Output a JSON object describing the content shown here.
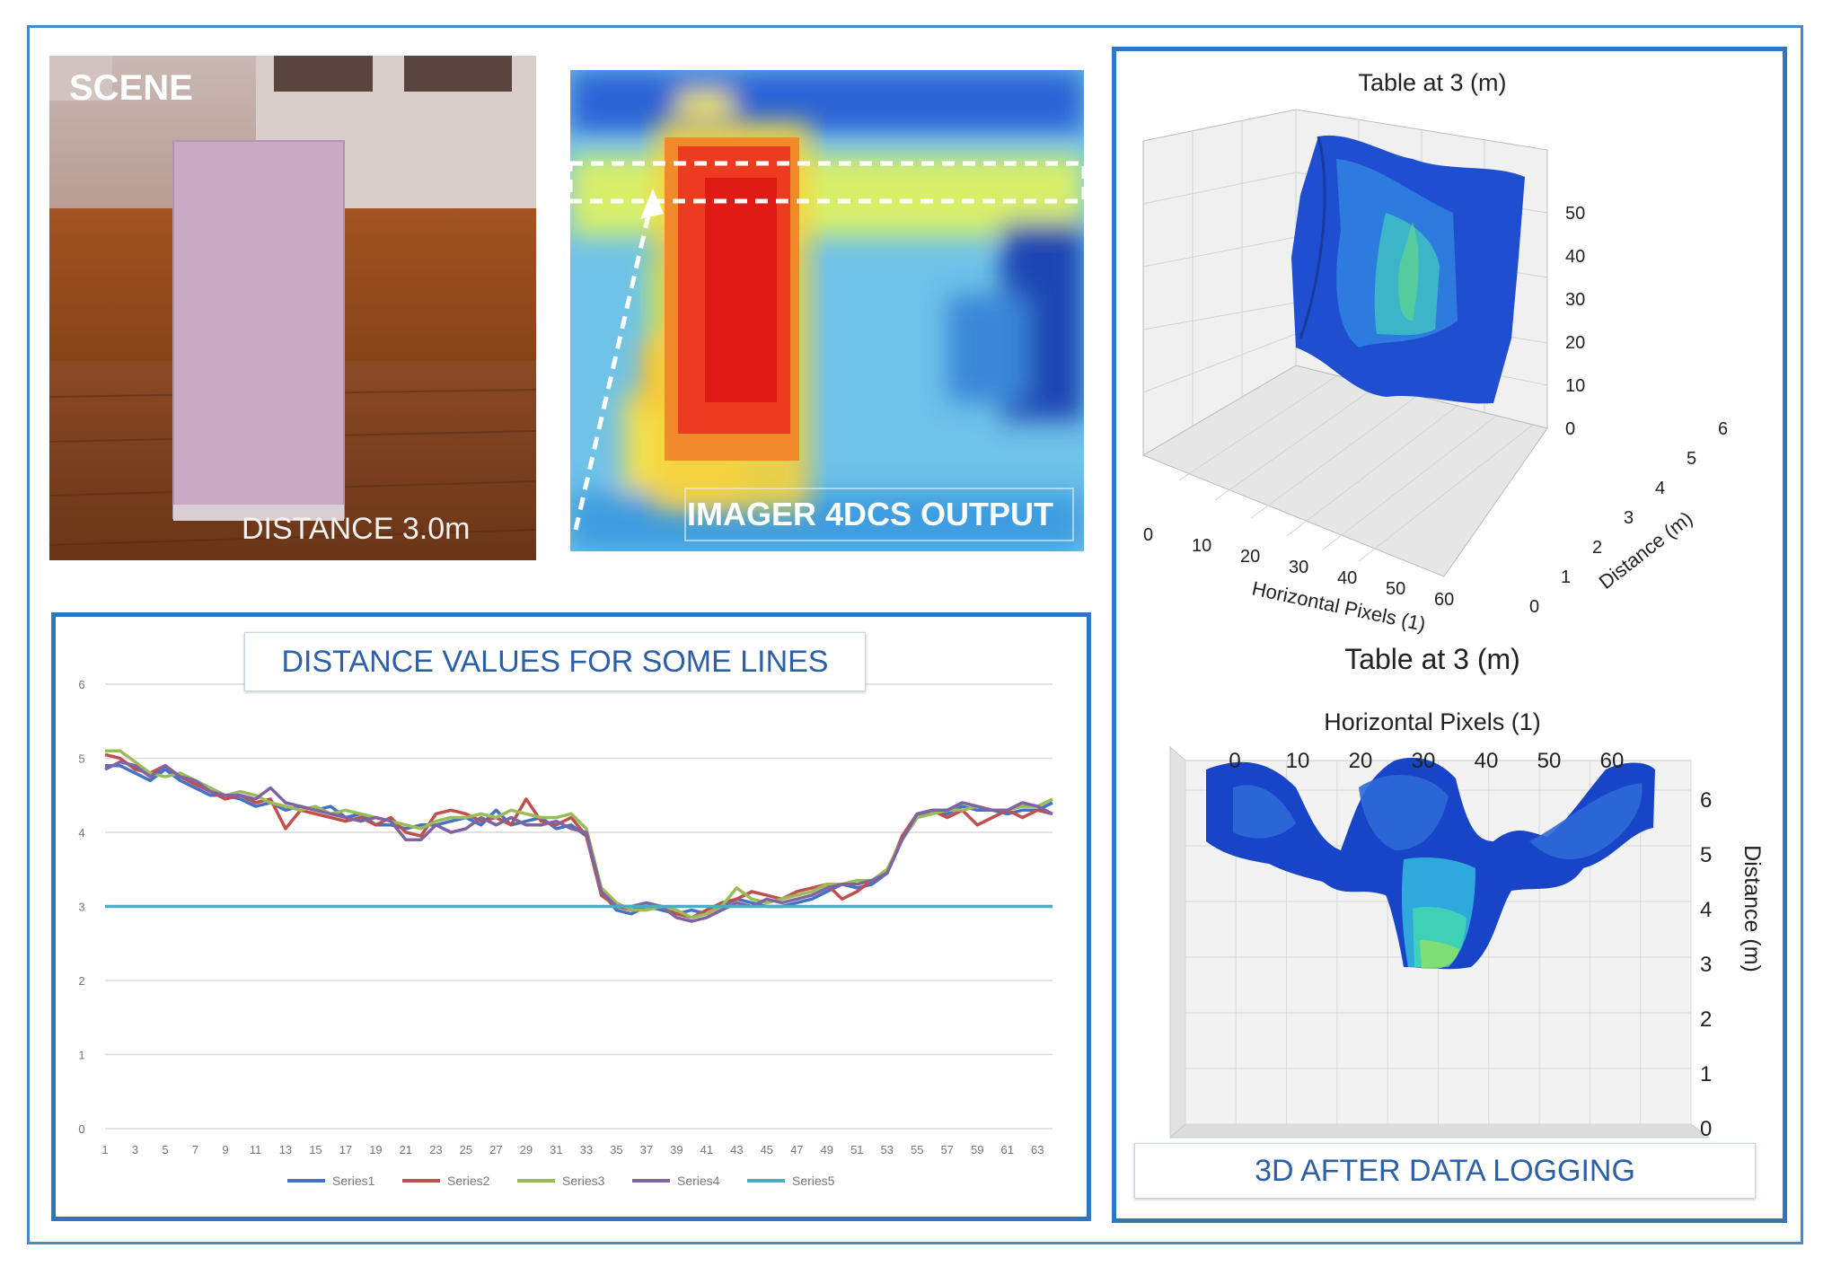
{
  "scene": {
    "label": "SCENE",
    "distance_label": "DISTANCE 3.0m"
  },
  "imager": {
    "label": "IMAGER 4DCS OUTPUT"
  },
  "plot3d_top": {
    "title": "Table at 3 (m)",
    "xlabel": "Horizontal Pixels (1)",
    "ylabel": "Distance (m)",
    "x_ticks": [
      "0",
      "10",
      "20",
      "30",
      "40",
      "50",
      "60"
    ],
    "y_ticks": [
      "0",
      "1",
      "2",
      "3",
      "4",
      "5",
      "6"
    ],
    "z_ticks": [
      "0",
      "10",
      "20",
      "30",
      "40",
      "50"
    ]
  },
  "plot3d_bottom": {
    "title": "Table at 3 (m)",
    "xlabel": "Horizontal Pixels (1)",
    "zlabel": "Distance (m)",
    "x_ticks": [
      "0",
      "10",
      "20",
      "30",
      "40",
      "50",
      "60"
    ],
    "z_ticks": [
      "0",
      "1",
      "2",
      "3",
      "4",
      "5",
      "6"
    ],
    "caption": "3D AFTER DATA LOGGING"
  },
  "chart_data": {
    "type": "line",
    "title": "DISTANCE VALUES FOR SOME LINES",
    "ylim": [
      0,
      6
    ],
    "y_ticks": [
      0,
      1,
      2,
      3,
      4,
      5,
      6
    ],
    "x_tick_labels": [
      "1",
      "3",
      "5",
      "7",
      "9",
      "11",
      "13",
      "15",
      "17",
      "19",
      "21",
      "23",
      "25",
      "27",
      "29",
      "31",
      "33",
      "35",
      "37",
      "39",
      "41",
      "43",
      "45",
      "47",
      "49",
      "51",
      "53",
      "55",
      "57",
      "59",
      "61",
      "63"
    ],
    "x": [
      1,
      2,
      3,
      4,
      5,
      6,
      7,
      8,
      9,
      10,
      11,
      12,
      13,
      14,
      15,
      16,
      17,
      18,
      19,
      20,
      21,
      22,
      23,
      24,
      25,
      26,
      27,
      28,
      29,
      30,
      31,
      32,
      33,
      34,
      35,
      36,
      37,
      38,
      39,
      40,
      41,
      42,
      43,
      44,
      45,
      46,
      47,
      48,
      49,
      50,
      51,
      52,
      53,
      54,
      55,
      56,
      57,
      58,
      59,
      60,
      61,
      62,
      63,
      64
    ],
    "grid": true,
    "legend_position": "bottom",
    "series": [
      {
        "name": "Series1",
        "color": "#4472c4",
        "values": [
          4.9,
          4.9,
          4.8,
          4.7,
          4.85,
          4.7,
          4.6,
          4.5,
          4.5,
          4.45,
          4.35,
          4.4,
          4.3,
          4.35,
          4.3,
          4.35,
          4.2,
          4.25,
          4.1,
          4.1,
          4.05,
          4.1,
          4.1,
          4.15,
          4.2,
          4.1,
          4.3,
          4.1,
          4.15,
          4.2,
          4.05,
          4.1,
          3.95,
          3.2,
          2.95,
          2.9,
          3.0,
          2.95,
          2.9,
          2.95,
          2.9,
          3.0,
          3.1,
          3.05,
          3.0,
          3.0,
          3.05,
          3.1,
          3.2,
          3.3,
          3.25,
          3.3,
          3.45,
          3.9,
          4.2,
          4.3,
          4.25,
          4.35,
          4.3,
          4.3,
          4.25,
          4.3,
          4.3,
          4.4
        ]
      },
      {
        "name": "Series2",
        "color": "#c0504d",
        "values": [
          5.05,
          5.0,
          4.85,
          4.8,
          4.9,
          4.75,
          4.65,
          4.55,
          4.45,
          4.5,
          4.4,
          4.45,
          4.05,
          4.3,
          4.25,
          4.2,
          4.15,
          4.2,
          4.1,
          4.2,
          4.0,
          3.95,
          4.25,
          4.3,
          4.25,
          4.15,
          4.2,
          4.1,
          4.45,
          4.15,
          4.1,
          4.2,
          3.95,
          3.15,
          3.0,
          2.95,
          3.0,
          3.0,
          2.9,
          2.85,
          2.95,
          3.05,
          3.1,
          3.2,
          3.15,
          3.1,
          3.2,
          3.25,
          3.3,
          3.1,
          3.2,
          3.35,
          3.45,
          3.95,
          4.25,
          4.3,
          4.2,
          4.3,
          4.1,
          4.2,
          4.3,
          4.2,
          4.3,
          4.25
        ]
      },
      {
        "name": "Series3",
        "color": "#9bbb59",
        "values": [
          5.1,
          5.1,
          4.95,
          4.8,
          4.75,
          4.8,
          4.7,
          4.6,
          4.5,
          4.55,
          4.5,
          4.4,
          4.35,
          4.3,
          4.35,
          4.25,
          4.3,
          4.25,
          4.2,
          4.15,
          4.1,
          4.05,
          4.15,
          4.2,
          4.2,
          4.25,
          4.2,
          4.3,
          4.25,
          4.2,
          4.2,
          4.25,
          4.05,
          3.25,
          3.05,
          2.95,
          2.95,
          3.0,
          2.95,
          2.85,
          2.9,
          3.0,
          3.25,
          3.1,
          3.05,
          3.1,
          3.15,
          3.2,
          3.3,
          3.3,
          3.35,
          3.35,
          3.5,
          3.9,
          4.2,
          4.25,
          4.3,
          4.3,
          4.35,
          4.3,
          4.3,
          4.35,
          4.35,
          4.45
        ]
      },
      {
        "name": "Series4",
        "color": "#8064a2",
        "values": [
          4.85,
          4.95,
          4.9,
          4.75,
          4.9,
          4.75,
          4.7,
          4.55,
          4.5,
          4.5,
          4.45,
          4.6,
          4.4,
          4.35,
          4.3,
          4.25,
          4.2,
          4.15,
          4.2,
          4.15,
          3.9,
          3.9,
          4.1,
          4.0,
          4.05,
          4.2,
          4.1,
          4.2,
          4.1,
          4.1,
          4.15,
          4.05,
          4.0,
          3.2,
          3.0,
          3.0,
          3.05,
          3.0,
          2.85,
          2.8,
          2.85,
          2.95,
          3.05,
          3.0,
          3.1,
          3.05,
          3.1,
          3.15,
          3.25,
          3.3,
          3.3,
          3.35,
          3.45,
          3.9,
          4.25,
          4.3,
          4.3,
          4.4,
          4.35,
          4.3,
          4.3,
          4.4,
          4.35,
          4.25
        ]
      },
      {
        "name": "Series5",
        "color": "#4bacc6",
        "values": [
          3,
          3,
          3,
          3,
          3,
          3,
          3,
          3,
          3,
          3,
          3,
          3,
          3,
          3,
          3,
          3,
          3,
          3,
          3,
          3,
          3,
          3,
          3,
          3,
          3,
          3,
          3,
          3,
          3,
          3,
          3,
          3,
          3,
          3,
          3,
          3,
          3,
          3,
          3,
          3,
          3,
          3,
          3,
          3,
          3,
          3,
          3,
          3,
          3,
          3,
          3,
          3,
          3,
          3,
          3,
          3,
          3,
          3,
          3,
          3,
          3,
          3,
          3,
          3
        ]
      }
    ]
  }
}
